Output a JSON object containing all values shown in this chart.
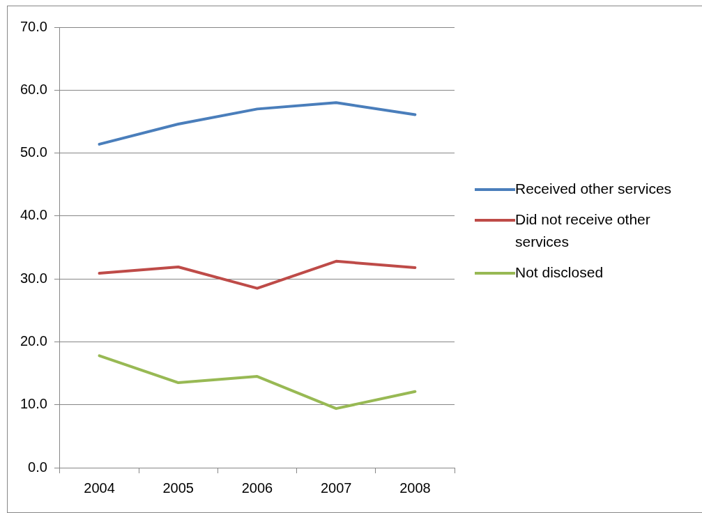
{
  "chart_data": {
    "type": "line",
    "categories": [
      "2004",
      "2005",
      "2006",
      "2007",
      "2008"
    ],
    "series": [
      {
        "name": "Received other services",
        "color": "#4a7ebb",
        "values": [
          51.4,
          54.6,
          57.0,
          58.0,
          56.1
        ]
      },
      {
        "name": "Did not receive other services",
        "color": "#be4b48",
        "values": [
          30.9,
          31.9,
          28.5,
          32.8,
          31.8
        ]
      },
      {
        "name": "Not disclosed",
        "color": "#98b954",
        "values": [
          17.8,
          13.5,
          14.5,
          9.4,
          12.1
        ]
      }
    ],
    "ylim": [
      0,
      70
    ],
    "yticks": [
      {
        "value": 0,
        "label": "0.0"
      },
      {
        "value": 10,
        "label": "10.0"
      },
      {
        "value": 20,
        "label": "20.0"
      },
      {
        "value": 30,
        "label": "30.0"
      },
      {
        "value": 40,
        "label": "40.0"
      },
      {
        "value": 50,
        "label": "50.0"
      },
      {
        "value": 60,
        "label": "60.0"
      },
      {
        "value": 70,
        "label": "70.0"
      }
    ],
    "grid": "y",
    "legend": "right",
    "marker": "none",
    "line_style": "solid"
  }
}
